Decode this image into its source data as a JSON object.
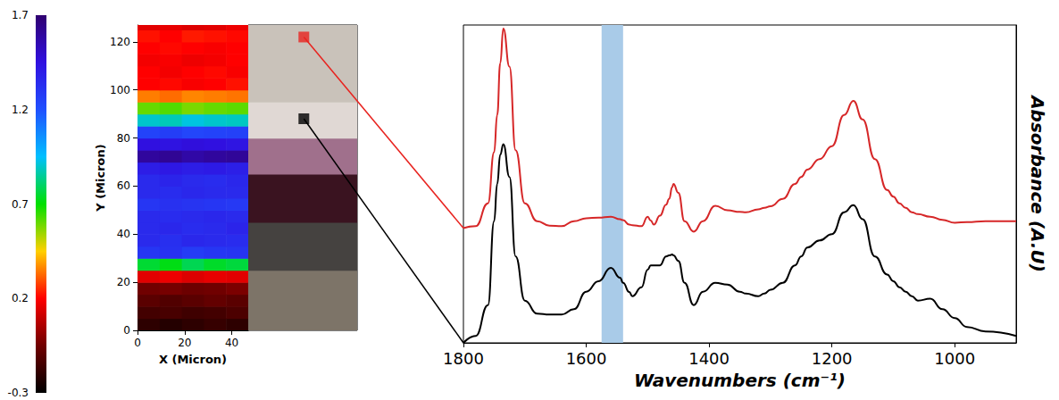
{
  "chart_data": [
    {
      "type": "heatmap",
      "xlabel": "X (Micron)",
      "ylabel": "Y (Micron)",
      "xlim": [
        0,
        47
      ],
      "ylim": [
        0,
        127
      ],
      "xticks": [
        0,
        20,
        40
      ],
      "yticks": [
        0,
        20,
        40,
        60,
        80,
        100,
        120
      ],
      "grid": false,
      "x": [
        4.7,
        14.1,
        23.5,
        32.9,
        42.3
      ],
      "y": [
        2.5,
        7.5,
        12.5,
        17.5,
        22.5,
        27.5,
        32.5,
        37.5,
        42.5,
        47.5,
        52.5,
        57.5,
        62.5,
        67.5,
        72.5,
        77.5,
        82.5,
        87.5,
        92.5,
        97.5,
        102.5,
        107.5,
        112.5,
        117.5,
        122.5,
        127.5
      ],
      "cells": [
        [
          -0.2,
          -0.22,
          -0.2,
          -0.18,
          -0.2
        ],
        [
          -0.15,
          -0.14,
          -0.16,
          -0.15,
          -0.13
        ],
        [
          -0.1,
          -0.12,
          -0.1,
          -0.08,
          -0.1
        ],
        [
          -0.05,
          -0.04,
          -0.06,
          -0.05,
          -0.03
        ],
        [
          0.15,
          0.17,
          0.14,
          0.16,
          0.15
        ],
        [
          0.75,
          0.72,
          0.78,
          0.74,
          0.76
        ],
        [
          1.3,
          1.32,
          1.28,
          1.3,
          1.31
        ],
        [
          1.35,
          1.33,
          1.36,
          1.35,
          1.34
        ],
        [
          1.35,
          1.36,
          1.34,
          1.35,
          1.37
        ],
        [
          1.35,
          1.34,
          1.35,
          1.36,
          1.35
        ],
        [
          1.3,
          1.32,
          1.31,
          1.3,
          1.29
        ],
        [
          1.35,
          1.34,
          1.36,
          1.35,
          1.35
        ],
        [
          1.35,
          1.37,
          1.35,
          1.34,
          1.36
        ],
        [
          1.4,
          1.42,
          1.4,
          1.41,
          1.39
        ],
        [
          1.6,
          1.62,
          1.58,
          1.6,
          1.61
        ],
        [
          1.45,
          1.44,
          1.46,
          1.45,
          1.43
        ],
        [
          1.25,
          1.27,
          1.24,
          1.25,
          1.26
        ],
        [
          0.9,
          0.88,
          0.92,
          0.9,
          0.89
        ],
        [
          0.6,
          0.62,
          0.58,
          0.6,
          0.61
        ],
        [
          0.35,
          0.33,
          0.36,
          0.35,
          0.34
        ],
        [
          0.2,
          0.21,
          0.19,
          0.2,
          0.22
        ],
        [
          0.2,
          0.18,
          0.2,
          0.21,
          0.19
        ],
        [
          0.18,
          0.19,
          0.17,
          0.18,
          0.2
        ],
        [
          0.2,
          0.21,
          0.2,
          0.19,
          0.2
        ],
        [
          0.22,
          0.2,
          0.23,
          0.22,
          0.21
        ],
        [
          0.15,
          0.16,
          0.14,
          0.15,
          0.17
        ]
      ],
      "colorbar": {
        "range": [
          -0.3,
          1.7
        ],
        "ticks": [
          -0.3,
          0.2,
          0.7,
          1.2,
          1.7
        ],
        "colors": [
          "#000000",
          "#700000",
          "#ff0000",
          "#ffd000",
          "#00e000",
          "#00c0ff",
          "#2050ff",
          "#3010e0",
          "#300070"
        ]
      }
    },
    {
      "type": "image",
      "xlim": [
        0,
        47
      ],
      "ylim": [
        0,
        127
      ],
      "tick_labels": false,
      "layers": [
        {
          "from": 0,
          "to": 25,
          "color": "#7d7468"
        },
        {
          "from": 25,
          "to": 45,
          "color": "#454240"
        },
        {
          "from": 45,
          "to": 65,
          "color": "#3a1320"
        },
        {
          "from": 65,
          "to": 80,
          "color": "#a0708c"
        },
        {
          "from": 80,
          "to": 95,
          "color": "#e0d8d4"
        },
        {
          "from": 95,
          "to": 127,
          "color": "#c9c2ba"
        }
      ],
      "markers": [
        {
          "x": 24,
          "y": 122,
          "color": "#e8231f",
          "marker": "square"
        },
        {
          "x": 24,
          "y": 88,
          "color": "#000000",
          "marker": "square"
        }
      ]
    },
    {
      "type": "line",
      "xlabel": "Wavenumbers (cm⁻¹)",
      "ylabel": "Absorbance (A.U)",
      "xlim": [
        1800,
        900
      ],
      "xticks": [
        1800,
        1600,
        1400,
        1200,
        1000
      ],
      "ylim": [
        0,
        1
      ],
      "yticks": [],
      "tick_labels": "x",
      "grid": false,
      "highlight": {
        "from": 1575,
        "to": 1540,
        "color": "#a9cbe8"
      },
      "x": [
        1800,
        1780,
        1760,
        1750,
        1745,
        1740,
        1735,
        1725,
        1715,
        1700,
        1680,
        1660,
        1640,
        1620,
        1600,
        1580,
        1560,
        1545,
        1540,
        1530,
        1525,
        1510,
        1500,
        1495,
        1490,
        1480,
        1470,
        1465,
        1460,
        1458,
        1450,
        1440,
        1425,
        1410,
        1390,
        1370,
        1350,
        1340,
        1320,
        1310,
        1300,
        1280,
        1260,
        1250,
        1240,
        1220,
        1200,
        1180,
        1165,
        1150,
        1130,
        1110,
        1100,
        1090,
        1080,
        1070,
        1060,
        1040,
        1020,
        1000,
        980,
        950,
        900
      ],
      "series": [
        {
          "color": "#d62728",
          "values": [
            0.361,
            0.367,
            0.439,
            0.6,
            0.717,
            0.88,
            0.989,
            0.869,
            0.606,
            0.439,
            0.383,
            0.369,
            0.367,
            0.383,
            0.392,
            0.394,
            0.397,
            0.389,
            0.386,
            0.372,
            0.37,
            0.367,
            0.397,
            0.385,
            0.372,
            0.4,
            0.435,
            0.453,
            0.49,
            0.5,
            0.472,
            0.383,
            0.35,
            0.383,
            0.431,
            0.417,
            0.412,
            0.411,
            0.42,
            0.425,
            0.43,
            0.453,
            0.5,
            0.522,
            0.545,
            0.578,
            0.619,
            0.717,
            0.761,
            0.703,
            0.578,
            0.481,
            0.46,
            0.439,
            0.425,
            0.411,
            0.405,
            0.397,
            0.387,
            0.378,
            0.38,
            0.383,
            0.383
          ]
        },
        {
          "color": "#000000",
          "values": [
            0.0,
            0.022,
            0.119,
            0.383,
            0.5,
            0.592,
            0.625,
            0.522,
            0.272,
            0.133,
            0.092,
            0.089,
            0.089,
            0.106,
            0.161,
            0.194,
            0.236,
            0.205,
            0.189,
            0.16,
            0.147,
            0.175,
            0.23,
            0.244,
            0.244,
            0.244,
            0.272,
            0.275,
            0.278,
            0.275,
            0.258,
            0.189,
            0.119,
            0.161,
            0.189,
            0.183,
            0.161,
            0.155,
            0.147,
            0.155,
            0.167,
            0.189,
            0.244,
            0.272,
            0.3,
            0.322,
            0.342,
            0.411,
            0.433,
            0.389,
            0.272,
            0.215,
            0.194,
            0.175,
            0.161,
            0.147,
            0.133,
            0.139,
            0.106,
            0.078,
            0.05,
            0.036,
            0.022
          ]
        }
      ]
    }
  ]
}
